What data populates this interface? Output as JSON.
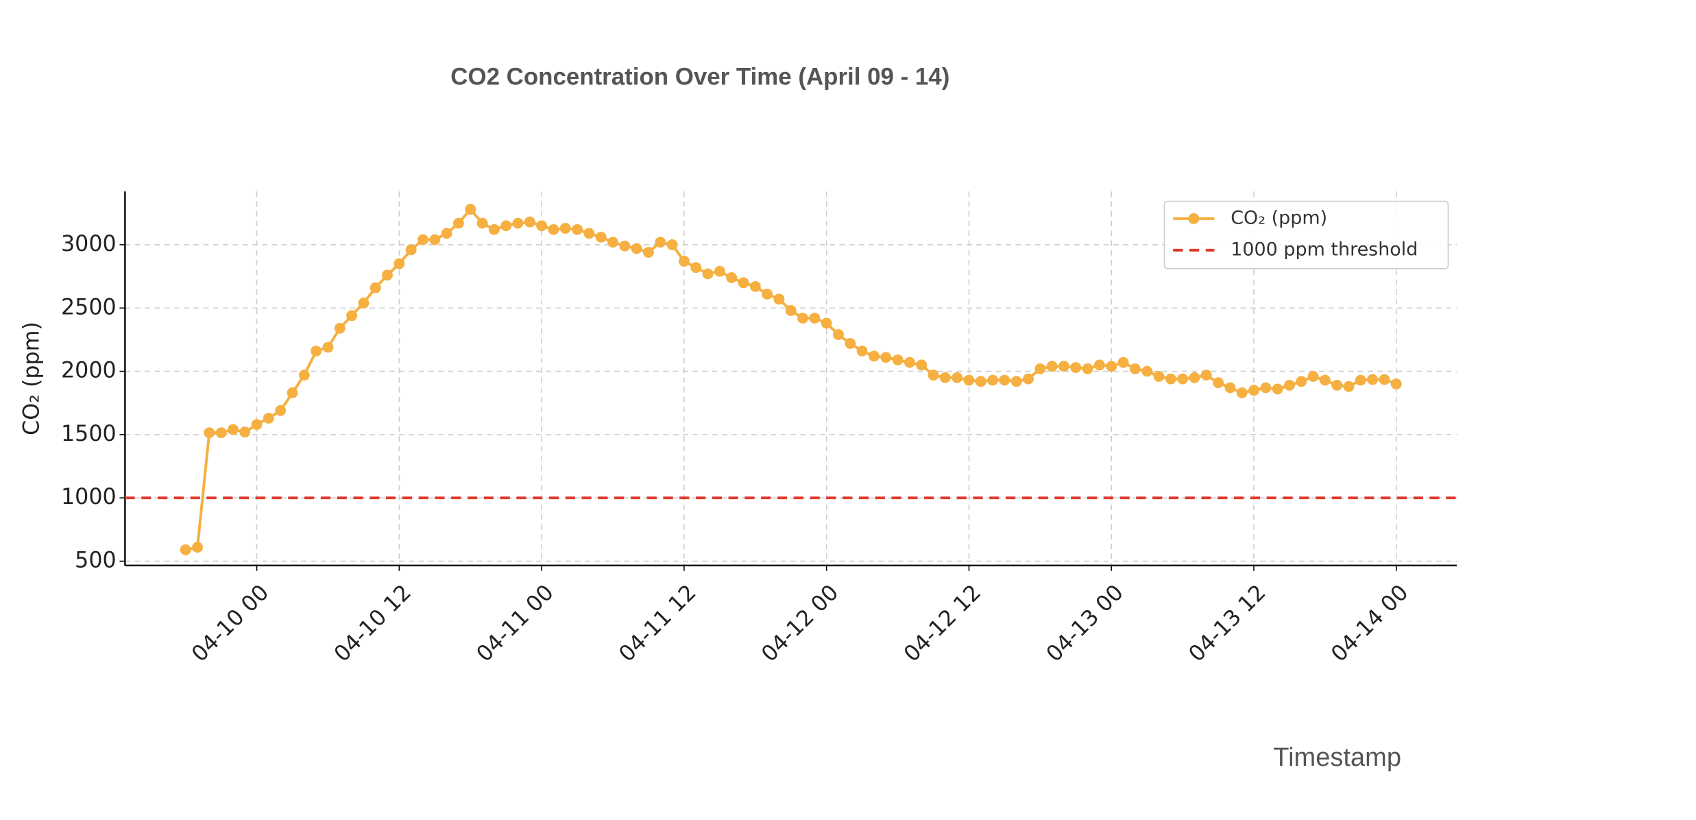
{
  "chart_data": {
    "type": "line",
    "title": "CO2 Concentration Over Time (April 09 - 14)",
    "xlabel": "Timestamp",
    "ylabel": "CO₂ (ppm)",
    "x": [
      "04-09 18",
      "04-09 19",
      "04-09 20",
      "04-09 21",
      "04-09 22",
      "04-09 23",
      "04-10 00",
      "04-10 01",
      "04-10 02",
      "04-10 03",
      "04-10 04",
      "04-10 05",
      "04-10 06",
      "04-10 07",
      "04-10 08",
      "04-10 09",
      "04-10 10",
      "04-10 11",
      "04-10 12",
      "04-10 13",
      "04-10 14",
      "04-10 15",
      "04-10 16",
      "04-10 17",
      "04-10 18",
      "04-10 19",
      "04-10 20",
      "04-10 21",
      "04-10 22",
      "04-10 23",
      "04-11 00",
      "04-11 01",
      "04-11 02",
      "04-11 03",
      "04-11 04",
      "04-11 05",
      "04-11 06",
      "04-11 07",
      "04-11 08",
      "04-11 09",
      "04-11 10",
      "04-11 11",
      "04-11 12",
      "04-11 13",
      "04-11 14",
      "04-11 15",
      "04-11 16",
      "04-11 17",
      "04-11 18",
      "04-11 19",
      "04-11 20",
      "04-11 21",
      "04-11 22",
      "04-11 23",
      "04-12 00",
      "04-12 01",
      "04-12 02",
      "04-12 03",
      "04-12 04",
      "04-12 05",
      "04-12 06",
      "04-12 07",
      "04-12 08",
      "04-12 09",
      "04-12 10",
      "04-12 11",
      "04-12 12",
      "04-12 13",
      "04-12 14",
      "04-12 15",
      "04-12 16",
      "04-12 17",
      "04-12 18",
      "04-12 19",
      "04-12 20",
      "04-12 21",
      "04-12 22",
      "04-12 23",
      "04-13 00",
      "04-13 01",
      "04-13 02",
      "04-13 03",
      "04-13 04",
      "04-13 05",
      "04-13 06",
      "04-13 07",
      "04-13 08",
      "04-13 09",
      "04-13 10",
      "04-13 11",
      "04-13 12",
      "04-13 13",
      "04-13 14",
      "04-13 15",
      "04-13 16",
      "04-13 17",
      "04-13 18",
      "04-13 19",
      "04-13 20",
      "04-13 21",
      "04-13 22",
      "04-13 23",
      "04-14 00"
    ],
    "series": [
      {
        "name": "CO₂ (ppm)",
        "color": "#f5b041",
        "values": [
          590,
          610,
          1515,
          1515,
          1540,
          1520,
          1580,
          1630,
          1690,
          1830,
          1970,
          2160,
          2190,
          2340,
          2440,
          2540,
          2660,
          2760,
          2850,
          2960,
          3040,
          3040,
          3090,
          3170,
          3280,
          3170,
          3120,
          3150,
          3170,
          3180,
          3150,
          3120,
          3130,
          3120,
          3090,
          3060,
          3020,
          2990,
          2970,
          2940,
          3020,
          3000,
          2870,
          2820,
          2770,
          2790,
          2740,
          2700,
          2670,
          2610,
          2570,
          2480,
          2420,
          2420,
          2380,
          2290,
          2220,
          2160,
          2120,
          2110,
          2090,
          2070,
          2050,
          1970,
          1950,
          1950,
          1930,
          1920,
          1930,
          1930,
          1920,
          1940,
          2020,
          2040,
          2040,
          2030,
          2020,
          2050,
          2040,
          2070,
          2020,
          2000,
          1960,
          1940,
          1940,
          1950,
          1970,
          1910,
          1870,
          1830,
          1850,
          1870,
          1860,
          1890,
          1920,
          1960,
          1930,
          1890,
          1880,
          1930,
          1935,
          1935,
          1900
        ]
      }
    ],
    "threshold": {
      "name": "1000 ppm threshold",
      "value": 1000,
      "color": "#e0392b"
    },
    "xlim": [
      "04-09 12:54",
      "04-14 05:06"
    ],
    "xticks": [
      "04-10 00",
      "04-10 12",
      "04-11 00",
      "04-11 12",
      "04-12 00",
      "04-12 12",
      "04-13 00",
      "04-13 12",
      "04-14 00"
    ],
    "ylim": [
      466,
      3421
    ],
    "yticks": [
      500,
      1000,
      1500,
      2000,
      2500,
      3000
    ],
    "grid": true,
    "legend": "upper right"
  }
}
